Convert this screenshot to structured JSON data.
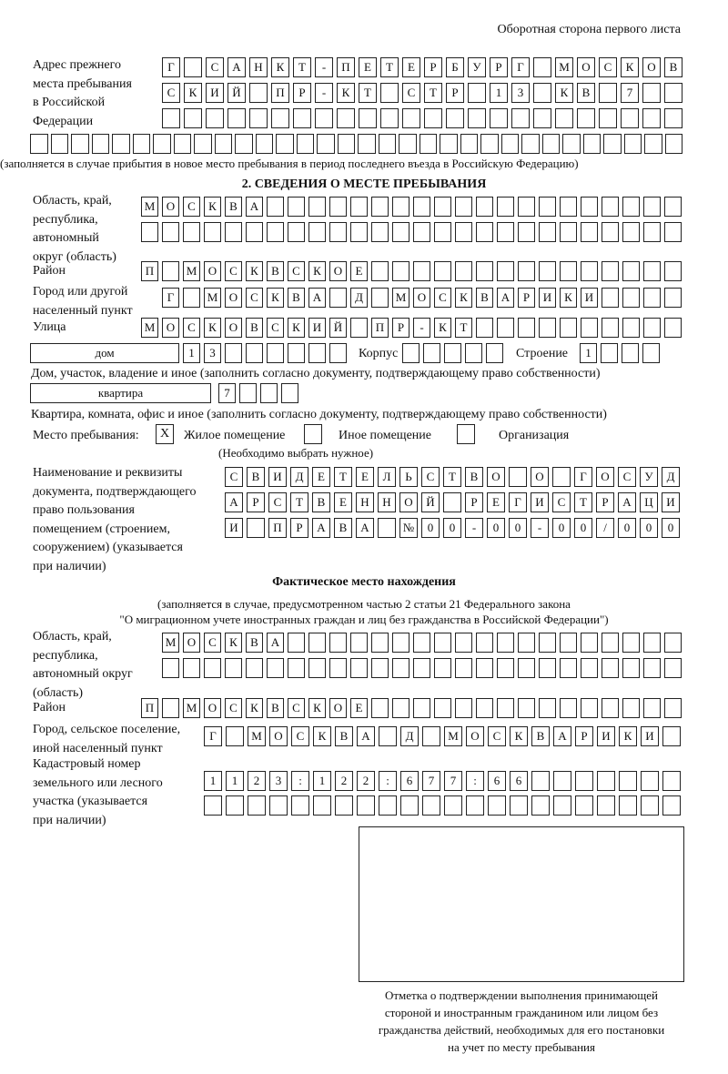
{
  "header": "Оборотная сторона первого листа",
  "prev_address": {
    "label": "Адрес прежнего\nместа пребывания\nв Российской\nФедерации",
    "rows": [
      [
        "Г",
        "",
        "С",
        "А",
        "Н",
        "К",
        "Т",
        "-",
        "П",
        "Е",
        "Т",
        "Е",
        "Р",
        "Б",
        "У",
        "Р",
        "Г",
        "",
        "М",
        "О",
        "С",
        "К",
        "О",
        "В"
      ],
      [
        "С",
        "К",
        "И",
        "Й",
        "",
        "П",
        "Р",
        "-",
        "К",
        "Т",
        "",
        "С",
        "Т",
        "Р",
        "",
        "1",
        "3",
        "",
        "К",
        "В",
        "",
        "7",
        "",
        ""
      ],
      [
        "",
        "",
        "",
        "",
        "",
        "",
        "",
        "",
        "",
        "",
        "",
        "",
        "",
        "",
        "",
        "",
        "",
        "",
        "",
        "",
        "",
        "",
        "",
        ""
      ],
      [
        "",
        "",
        "",
        "",
        "",
        "",
        "",
        "",
        "",
        "",
        "",
        "",
        "",
        "",
        "",
        "",
        "",
        "",
        "",
        "",
        "",
        "",
        "",
        "",
        "",
        "",
        "",
        "",
        "",
        "",
        "",
        ""
      ]
    ],
    "note": "(заполняется в случае прибытия в новое место пребывания в период последнего въезда в Российскую Федерацию)"
  },
  "section2": {
    "title": "2. СВЕДЕНИЯ О МЕСТЕ ПРЕБЫВАНИЯ",
    "region_label": "Область, край,\nреспублика,\nавтономный\nокруг (область)",
    "region_rows": [
      [
        "М",
        "О",
        "С",
        "К",
        "В",
        "А",
        "",
        "",
        "",
        "",
        "",
        "",
        "",
        "",
        "",
        "",
        "",
        "",
        "",
        "",
        "",
        "",
        "",
        "",
        "",
        ""
      ],
      [
        "",
        "",
        "",
        "",
        "",
        "",
        "",
        "",
        "",
        "",
        "",
        "",
        "",
        "",
        "",
        "",
        "",
        "",
        "",
        "",
        "",
        "",
        "",
        "",
        "",
        ""
      ]
    ],
    "district_label": "Район",
    "district": [
      "П",
      "",
      "М",
      "О",
      "С",
      "К",
      "В",
      "С",
      "К",
      "О",
      "Е",
      "",
      "",
      "",
      "",
      "",
      "",
      "",
      "",
      "",
      "",
      "",
      "",
      "",
      "",
      ""
    ],
    "city_label": "Город или другой\nнаселенный пункт",
    "city": [
      "Г",
      "",
      "М",
      "О",
      "С",
      "К",
      "В",
      "А",
      "",
      "Д",
      "",
      "М",
      "О",
      "С",
      "К",
      "В",
      "А",
      "Р",
      "И",
      "К",
      "И",
      "",
      "",
      "",
      ""
    ],
    "street_label": "Улица",
    "street": [
      "М",
      "О",
      "С",
      "К",
      "О",
      "В",
      "С",
      "К",
      "И",
      "Й",
      "",
      "П",
      "Р",
      "-",
      "К",
      "Т",
      "",
      "",
      "",
      "",
      "",
      "",
      "",
      "",
      "",
      ""
    ],
    "house_type": "дом",
    "house": [
      "1",
      "3",
      "",
      "",
      "",
      "",
      "",
      ""
    ],
    "korpus_label": "Корпус",
    "korpus": [
      "",
      "",
      "",
      "",
      ""
    ],
    "building_label": "Строение",
    "building": [
      "1",
      "",
      "",
      ""
    ],
    "house_note": "Дом, участок, владение и иное (заполнить согласно документу, подтверждающему право собственности)",
    "flat_type": "квартира",
    "flat": [
      "7",
      "",
      "",
      ""
    ],
    "flat_note": "Квартира, комната, офис и иное (заполнить согласно документу, подтверждающему право собственности)",
    "place_label": "Место пребывания:",
    "place_options": [
      {
        "label": "Жилое помещение",
        "mark": "X",
        "checked": true
      },
      {
        "label": "Иное помещение",
        "mark": "",
        "checked": false
      },
      {
        "label": "Организация",
        "mark": "",
        "checked": false
      }
    ],
    "place_note": "(Необходимо выбрать нужное)",
    "doc_label": "Наименование и реквизиты\nдокумента, подтверждающего\nправо пользования\nпомещением (строением,\nсооружением) (указывается\nпри наличии)",
    "doc_rows": [
      [
        "С",
        "В",
        "И",
        "Д",
        "Е",
        "Т",
        "Е",
        "Л",
        "Ь",
        "С",
        "Т",
        "В",
        "О",
        "",
        "О",
        "",
        "Г",
        "О",
        "С",
        "У",
        "Д"
      ],
      [
        "А",
        "Р",
        "С",
        "Т",
        "В",
        "Е",
        "Н",
        "Н",
        "О",
        "Й",
        "",
        "Р",
        "Е",
        "Г",
        "И",
        "С",
        "Т",
        "Р",
        "А",
        "Ц",
        "И"
      ],
      [
        "И",
        "",
        "П",
        "Р",
        "А",
        "В",
        "А",
        "",
        "№",
        "0",
        "0",
        "-",
        "0",
        "0",
        "-",
        "0",
        "0",
        "/",
        "0",
        "0",
        "0"
      ]
    ]
  },
  "actual": {
    "title": "Фактическое место нахождения",
    "note1": "(заполняется в случае, предусмотренном частью 2 статьи 21 Федерального закона",
    "note2": "\"О миграционном учете иностранных граждан и лиц без гражданства в Российской Федерации\")",
    "region_label": "Область, край,\nреспублика,\nавтономный округ\n(область)",
    "region_rows": [
      [
        "М",
        "О",
        "С",
        "К",
        "В",
        "А",
        "",
        "",
        "",
        "",
        "",
        "",
        "",
        "",
        "",
        "",
        "",
        "",
        "",
        "",
        "",
        "",
        "",
        "",
        ""
      ],
      [
        "",
        "",
        "",
        "",
        "",
        "",
        "",
        "",
        "",
        "",
        "",
        "",
        "",
        "",
        "",
        "",
        "",
        "",
        "",
        "",
        "",
        "",
        "",
        "",
        ""
      ]
    ],
    "district_label": "Район",
    "district": [
      "П",
      "",
      "М",
      "О",
      "С",
      "К",
      "В",
      "С",
      "К",
      "О",
      "Е",
      "",
      "",
      "",
      "",
      "",
      "",
      "",
      "",
      "",
      "",
      "",
      "",
      "",
      "",
      ""
    ],
    "city_label": "Город, сельское поселение,\nиной населенный пункт",
    "city": [
      "Г",
      "",
      "М",
      "О",
      "С",
      "К",
      "В",
      "А",
      "",
      "Д",
      "",
      "М",
      "О",
      "С",
      "К",
      "В",
      "А",
      "Р",
      "И",
      "К",
      "И",
      ""
    ],
    "cadastral_label": "Кадастровый номер\nземельного или лесного\nучастка (указывается\nпри наличии)",
    "cadastral_rows": [
      [
        "1",
        "1",
        "2",
        "3",
        ":",
        "1",
        "2",
        "2",
        ":",
        "6",
        "7",
        "7",
        ":",
        "6",
        "6",
        "",
        "",
        "",
        "",
        "",
        "",
        ""
      ],
      [
        "",
        "",
        "",
        "",
        "",
        "",
        "",
        "",
        "",
        "",
        "",
        "",
        "",
        "",
        "",
        "",
        "",
        "",
        "",
        "",
        "",
        ""
      ]
    ]
  },
  "stamp_caption": "Отметка о подтверждении выполнения принимающей\nстороной и иностранным гражданином или лицом без\nгражданства действий, необходимых для его постановки\nна учет по месту пребывания"
}
